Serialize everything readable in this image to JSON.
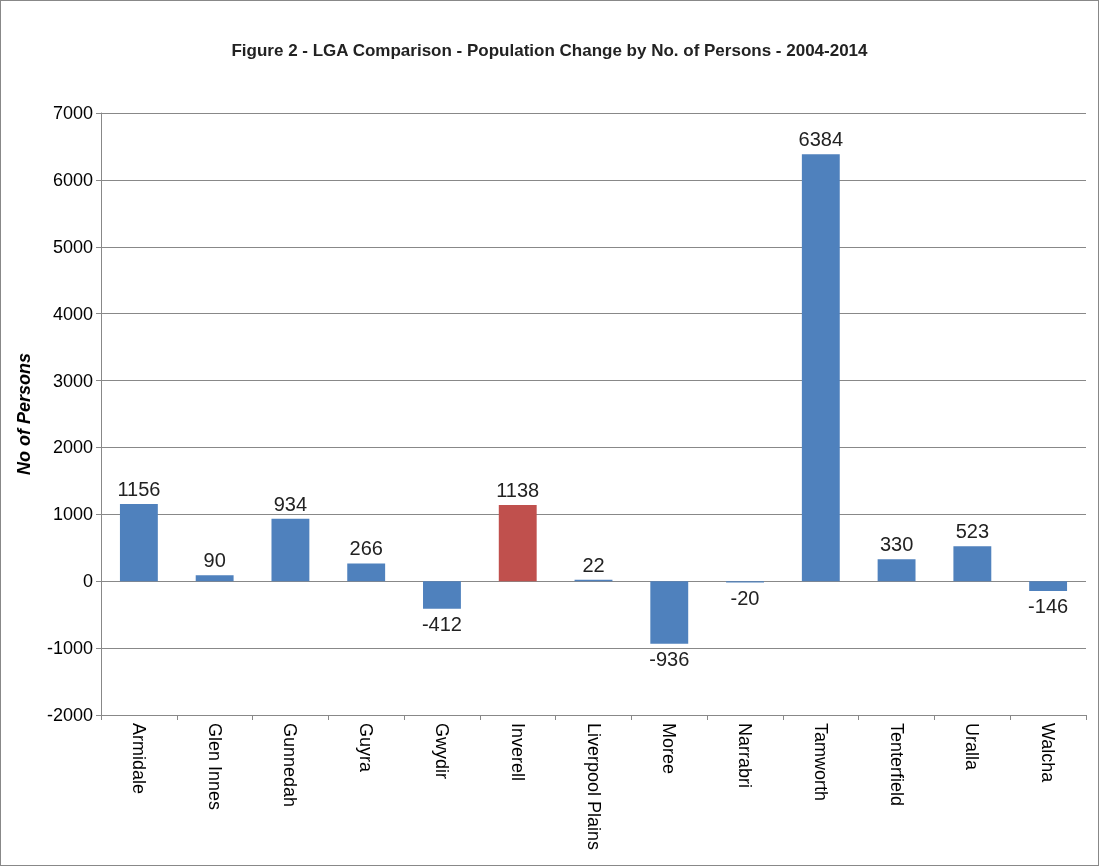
{
  "chart_data": {
    "type": "bar",
    "title": "Figure 2 - LGA Comparison - Population Change by No. of Persons - 2004-2014",
    "ylabel": "No of Persons",
    "categories": [
      "Armidale",
      "Glen Innes",
      "Gunnedah",
      "Guyra",
      "Gwydir",
      "Inverell",
      "Liverpool Plains",
      "Moree",
      "Narrabri",
      "Tamworth",
      "Tenterfield",
      "Uralla",
      "Walcha"
    ],
    "values": [
      1156,
      90,
      934,
      266,
      -412,
      1138,
      22,
      -936,
      -20,
      6384,
      330,
      523,
      -146
    ],
    "colors": [
      "#4f81bd",
      "#4f81bd",
      "#4f81bd",
      "#4f81bd",
      "#4f81bd",
      "#c0504d",
      "#4f81bd",
      "#4f81bd",
      "#4f81bd",
      "#4f81bd",
      "#4f81bd",
      "#4f81bd",
      "#4f81bd"
    ],
    "ylim": [
      -2000,
      7000
    ],
    "yticks": [
      -2000,
      -1000,
      0,
      1000,
      2000,
      3000,
      4000,
      5000,
      6000,
      7000
    ],
    "grid": "y",
    "data_labels": true
  }
}
